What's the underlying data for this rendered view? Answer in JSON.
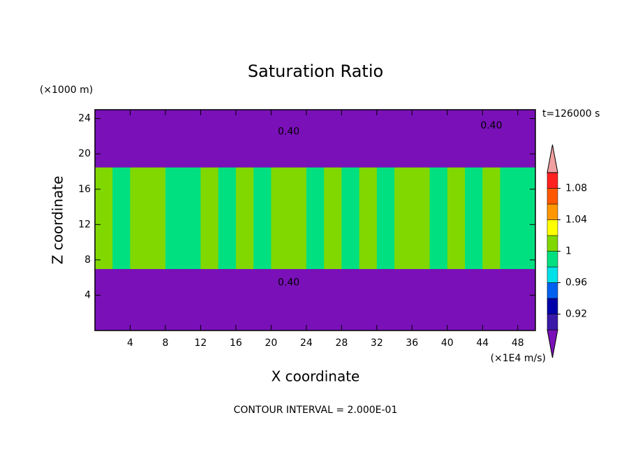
{
  "chart_data": {
    "type": "contour",
    "title": "Saturation Ratio",
    "xlabel": "X coordinate",
    "ylabel": "Z coordinate",
    "xunits": "(×1E4 m/s)",
    "yunits": "(×1000 m)",
    "time_label": "t=126000 s",
    "footer": "CONTOUR INTERVAL = 2.000E-01",
    "xlim": [
      0,
      50
    ],
    "ylim": [
      0,
      25
    ],
    "xticks": [
      4,
      8,
      12,
      16,
      20,
      24,
      28,
      32,
      36,
      40,
      44,
      48
    ],
    "yticks": [
      4,
      8,
      12,
      16,
      20,
      24
    ],
    "x_edges": [
      0,
      2,
      4,
      6,
      8,
      10,
      12,
      14,
      16,
      18,
      20,
      22,
      24,
      26,
      28,
      30,
      32,
      34,
      36,
      38,
      40,
      42,
      44,
      46,
      48,
      50
    ],
    "y_edges": [
      0,
      7,
      18.5,
      25
    ],
    "values": [
      [
        0.4,
        0.4,
        0.4,
        0.4,
        0.4,
        0.4,
        0.4,
        0.4,
        0.4,
        0.4,
        0.4,
        0.4,
        0.4,
        0.4,
        0.4,
        0.4,
        0.4,
        0.4,
        0.4,
        0.4,
        0.4,
        0.4,
        0.4,
        0.4,
        0.4
      ],
      [
        1.01,
        0.99,
        1.01,
        1.01,
        0.99,
        0.99,
        1.01,
        0.99,
        1.01,
        0.99,
        1.01,
        1.01,
        0.99,
        1.01,
        0.99,
        1.01,
        0.99,
        1.01,
        1.01,
        0.99,
        1.01,
        0.99,
        1.01,
        0.99,
        0.99
      ],
      [
        0.4,
        0.4,
        0.4,
        0.4,
        0.4,
        0.4,
        0.4,
        0.4,
        0.4,
        0.4,
        0.4,
        0.4,
        0.4,
        0.4,
        0.4,
        0.4,
        0.4,
        0.4,
        0.4,
        0.4,
        0.4,
        0.4,
        0.4,
        0.4,
        0.4
      ]
    ],
    "annotations": [
      {
        "text": "0.40",
        "x": 22,
        "y": 22.5
      },
      {
        "text": "0.40",
        "x": 45,
        "y": 23.2
      },
      {
        "text": "0.40",
        "x": 22,
        "y": 5.4
      }
    ],
    "colorbar": {
      "levels": [
        0.9,
        0.92,
        0.94,
        0.96,
        0.98,
        1,
        1.02,
        1.04,
        1.06,
        1.08,
        1.1
      ],
      "colors": [
        "#7a10b8",
        "#3a18a8",
        "#0000a8",
        "#0060f0",
        "#00e0e8",
        "#00e080",
        "#80d800",
        "#ffff00",
        "#ff9800",
        "#ff5800",
        "#ff2020",
        "#f0a0a0"
      ],
      "ticks": [
        0.92,
        0.96,
        1,
        1.04,
        1.08
      ]
    }
  }
}
